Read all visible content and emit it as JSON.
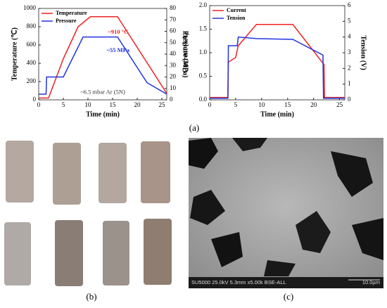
{
  "chart_data": [
    {
      "type": "line",
      "xlabel": "Time (min)",
      "ylabel": "Temperature (℃)",
      "y2label": "Pressure (MPa)",
      "xlim": [
        0,
        26
      ],
      "xticks": [
        0,
        5,
        10,
        15,
        20,
        25
      ],
      "ylim": [
        0,
        1000
      ],
      "yticks": [
        0,
        200,
        400,
        600,
        800,
        1000
      ],
      "y2lim": [
        0,
        80
      ],
      "y2ticks": [
        0,
        10,
        20,
        30,
        40,
        50,
        60,
        70,
        80
      ],
      "legend": "upper left",
      "series": [
        {
          "name": "Temperature",
          "color": "#ee2222",
          "axis": "y",
          "x": [
            0,
            2,
            5,
            8,
            10.5,
            16,
            26
          ],
          "values": [
            20,
            20,
            450,
            800,
            910,
            910,
            70
          ]
        },
        {
          "name": "Pressure",
          "color": "#2233dd",
          "axis": "y2",
          "x": [
            0,
            1.5,
            1.6,
            5,
            9,
            16,
            22,
            26
          ],
          "values": [
            5,
            5,
            20,
            20,
            55,
            55,
            15,
            5
          ]
        }
      ],
      "annotations": [
        {
          "text": "~910 °C",
          "color": "#ee2222"
        },
        {
          "text": "~55 MPa",
          "color": "#2233dd"
        },
        {
          "text": "~6.5 mbar Ar (5N)",
          "color": "#333333"
        }
      ]
    },
    {
      "type": "line",
      "xlabel": "Time (min)",
      "ylabel": "Current (kA)",
      "y2label": "Tension (V)",
      "xlim": [
        0,
        26
      ],
      "xticks": [
        0,
        5,
        10,
        15,
        20,
        25
      ],
      "ylim": [
        0,
        2
      ],
      "yticks": [
        {
          "value": 0,
          "label": "0.0"
        },
        0.5,
        {
          "value": 1,
          "label": "1.0"
        },
        1.5,
        {
          "value": 2,
          "label": "2.0"
        }
      ],
      "y2lim": [
        0,
        6
      ],
      "y2ticks": [
        0,
        1,
        2,
        3,
        4,
        5,
        6
      ],
      "legend": "upper left",
      "series": [
        {
          "name": "Current",
          "color": "#ee2222",
          "axis": "y",
          "x": [
            0,
            3.5,
            3.6,
            5,
            5.5,
            9,
            16,
            22,
            22.1,
            26
          ],
          "values": [
            0.05,
            0.05,
            0.8,
            0.9,
            1.15,
            1.6,
            1.6,
            0.75,
            0.05,
            0.05
          ]
        },
        {
          "name": "Tension",
          "color": "#2233dd",
          "axis": "y2",
          "x": [
            0,
            3.5,
            3.6,
            5.3,
            5.5,
            9,
            16,
            21.8,
            21.9,
            26
          ],
          "values": [
            0.1,
            0.1,
            3.45,
            3.45,
            4.0,
            3.9,
            3.85,
            2.85,
            0.1,
            0.1
          ]
        }
      ],
      "annotations": []
    }
  ],
  "panels": {
    "a": "(a)",
    "b": "(b)",
    "c": "(c)"
  },
  "sem": {
    "info": "SU5000 25.0kV 5.3mm x5.00k BSE-ALL",
    "scale": "10.0µm"
  }
}
